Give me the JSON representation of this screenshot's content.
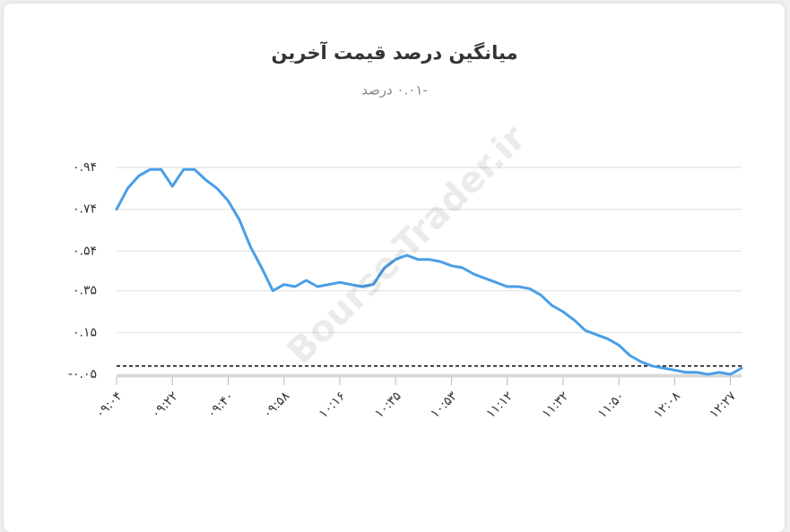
{
  "chart_data": {
    "type": "line",
    "title": "میانگین درصد قیمت آخرین",
    "subtitle": "-۰.۰۱ درصد",
    "watermark": "Bourse-Trader.ir",
    "categories": [
      "۰۹:۰۴",
      null,
      null,
      null,
      null,
      "۰۹:۲۲",
      null,
      null,
      null,
      null,
      "۰۹:۴۰",
      null,
      null,
      null,
      null,
      "۰۹:۵۸",
      null,
      null,
      null,
      null,
      "۱۰:۱۶",
      null,
      null,
      null,
      null,
      "۱۰:۳۵",
      null,
      null,
      null,
      null,
      "۱۰:۵۳",
      null,
      null,
      null,
      null,
      "۱۱:۱۲",
      null,
      null,
      null,
      null,
      "۱۱:۳۲",
      null,
      null,
      null,
      null,
      "۱۱:۵۰",
      null,
      null,
      null,
      null,
      "۱۲:۰۸",
      null,
      null,
      null,
      null,
      "۱۲:۲۷",
      null
    ],
    "values": [
      0.74,
      0.84,
      0.9,
      0.93,
      0.93,
      0.85,
      0.93,
      0.93,
      0.88,
      0.84,
      0.78,
      0.69,
      0.56,
      0.46,
      0.35,
      0.38,
      0.37,
      0.4,
      0.37,
      0.38,
      0.39,
      0.38,
      0.37,
      0.38,
      0.46,
      0.5,
      0.52,
      0.5,
      0.5,
      0.49,
      0.47,
      0.46,
      0.43,
      0.41,
      0.39,
      0.37,
      0.37,
      0.36,
      0.33,
      0.28,
      0.25,
      0.21,
      0.16,
      0.14,
      0.12,
      0.09,
      0.04,
      0.01,
      -0.01,
      -0.02,
      -0.03,
      -0.04,
      -0.04,
      -0.05,
      -0.04,
      -0.05,
      -0.02
    ],
    "color": "#4a9ee8",
    "ylim": [
      -0.05,
      0.94
    ],
    "yticks": [
      {
        "value": -0.05,
        "label": "-۰.۰۵"
      },
      {
        "value": 0.15,
        "label": "۰.۱۵"
      },
      {
        "value": 0.35,
        "label": "۰.۳۵"
      },
      {
        "value": 0.54,
        "label": "۰.۵۴"
      },
      {
        "value": 0.74,
        "label": "۰.۷۴"
      },
      {
        "value": 0.94,
        "label": "۰.۹۴"
      }
    ],
    "reference_line": {
      "value": -0.01,
      "color": "#000000"
    },
    "grid": true
  }
}
